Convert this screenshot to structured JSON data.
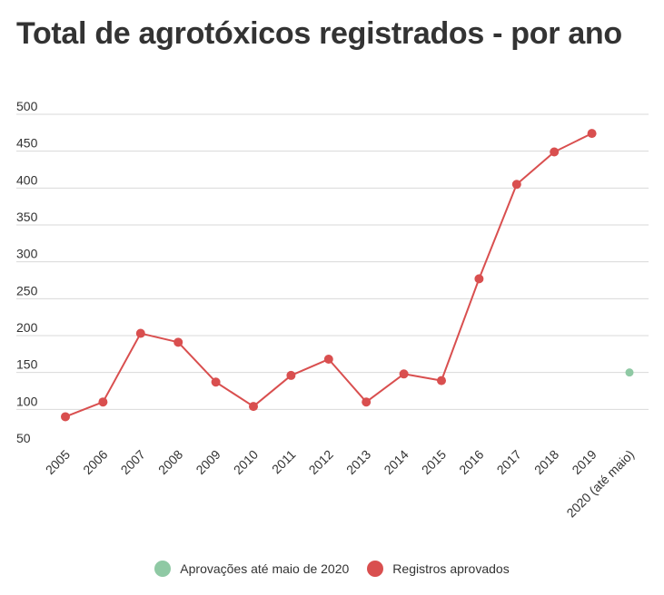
{
  "title": "Total de agrotóxicos registrados - por ano",
  "chart_data": {
    "type": "line",
    "title": "Total de agrotóxicos registrados - por ano",
    "categories": [
      "2005",
      "2006",
      "2007",
      "2008",
      "2009",
      "2010",
      "2011",
      "2012",
      "2013",
      "2014",
      "2015",
      "2016",
      "2017",
      "2018",
      "2019",
      "2020 (até maio)"
    ],
    "ylim": [
      50,
      500
    ],
    "yticks": [
      50,
      100,
      150,
      200,
      250,
      300,
      350,
      400,
      450,
      500
    ],
    "grid": true,
    "legend_position": "bottom",
    "series": [
      {
        "name": "Registros aprovados",
        "color": "#d94f4f",
        "values": [
          90,
          110,
          203,
          191,
          137,
          104,
          146,
          168,
          110,
          148,
          139,
          277,
          405,
          449,
          474,
          null
        ]
      },
      {
        "name": "Aprovações até maio de 2020",
        "color": "#8fc9a4",
        "values": [
          null,
          null,
          null,
          null,
          null,
          null,
          null,
          null,
          null,
          null,
          null,
          null,
          null,
          null,
          null,
          150
        ]
      }
    ]
  },
  "legend": [
    {
      "label": "Aprovações até maio de 2020",
      "color": "#8fc9a4"
    },
    {
      "label": "Registros aprovados",
      "color": "#d94f4f"
    }
  ]
}
